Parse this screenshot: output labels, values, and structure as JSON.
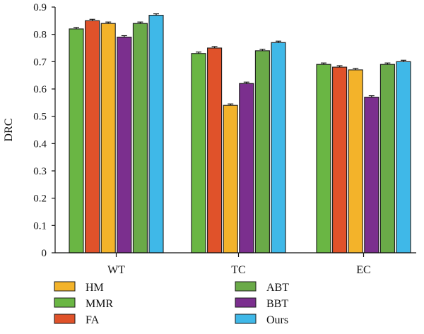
{
  "chart_data": {
    "type": "bar",
    "title": "",
    "xlabel": "",
    "ylabel": "DRC",
    "ylim": [
      0,
      0.9
    ],
    "yticks": [
      0,
      0.1,
      0.2,
      0.3,
      0.4,
      0.5,
      0.6,
      0.7,
      0.8,
      0.9
    ],
    "ytick_labels": [
      "0",
      "0.1",
      "0.2",
      "0.3",
      "0.4",
      "0.5",
      "0.6",
      "0.7",
      "0.8",
      "0.9"
    ],
    "grid": false,
    "error_bars": true,
    "legend_position": "bottom",
    "categories": [
      "WT",
      "TC",
      "EC"
    ],
    "series": [
      {
        "name": "MMR",
        "color": "#6ab644",
        "values": [
          0.82,
          0.73,
          0.69
        ]
      },
      {
        "name": "FA",
        "color": "#e0522a",
        "values": [
          0.85,
          0.75,
          0.68
        ]
      },
      {
        "name": "HM",
        "color": "#f3b32a",
        "values": [
          0.84,
          0.54,
          0.67
        ]
      },
      {
        "name": "BBT",
        "color": "#7b2f8e",
        "values": [
          0.79,
          0.62,
          0.57
        ]
      },
      {
        "name": "ABT",
        "color": "#6aaa48",
        "values": [
          0.84,
          0.74,
          0.69
        ]
      },
      {
        "name": "Ours",
        "color": "#3fb8e8",
        "values": [
          0.87,
          0.77,
          0.7
        ]
      }
    ],
    "legend_order": [
      "HM",
      "MMR",
      "FA",
      "ABT",
      "BBT",
      "Ours"
    ]
  }
}
